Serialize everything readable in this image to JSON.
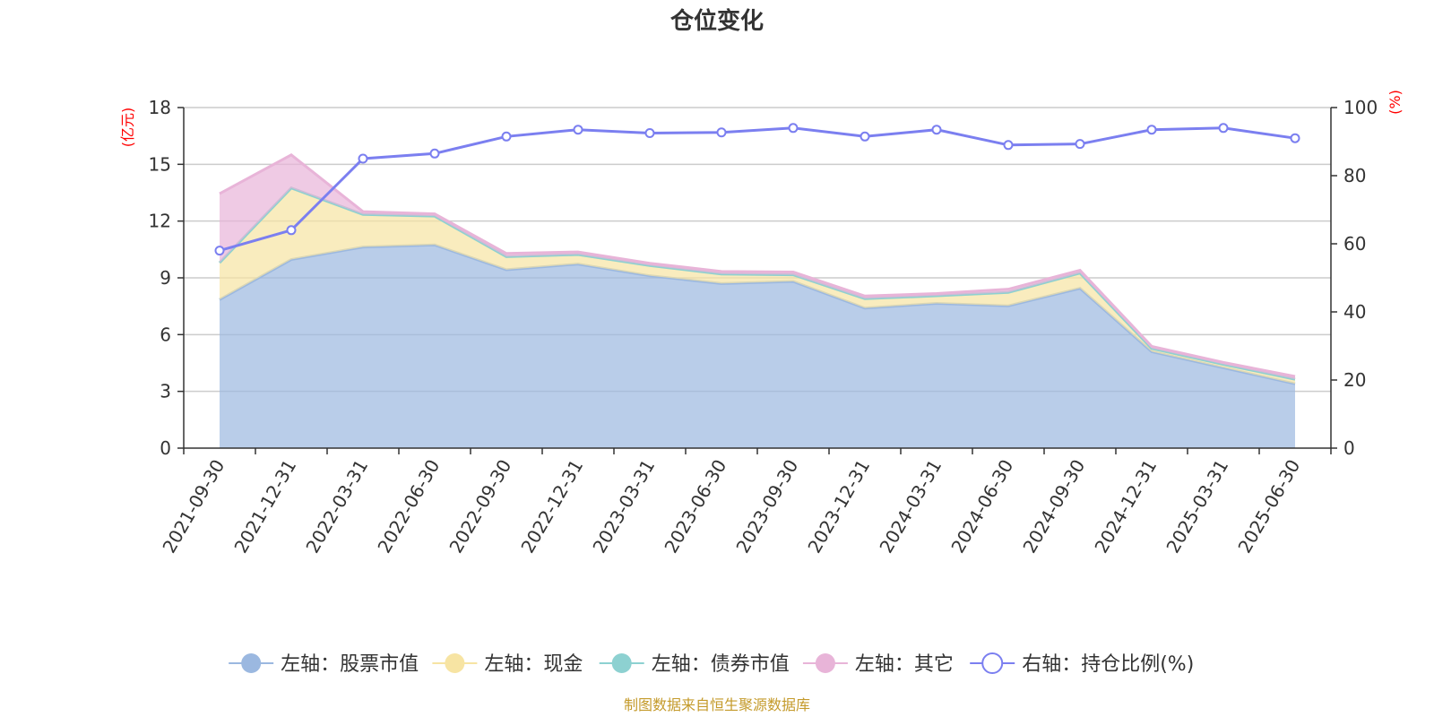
{
  "chart_data": {
    "type": "area",
    "title": "仓位变化",
    "categories": [
      "2021-09-30",
      "2021-12-31",
      "2022-03-31",
      "2022-06-30",
      "2022-09-30",
      "2022-12-31",
      "2023-03-31",
      "2023-06-30",
      "2023-09-30",
      "2023-12-31",
      "2024-03-31",
      "2024-06-30",
      "2024-09-30",
      "2024-12-31",
      "2025-03-31",
      "2025-06-30"
    ],
    "left_axis": {
      "unit": "(亿元)",
      "min": 0,
      "max": 18,
      "ticks": [
        0,
        3,
        6,
        9,
        12,
        15,
        18
      ]
    },
    "right_axis": {
      "unit": "(%)",
      "min": 0,
      "max": 100,
      "ticks": [
        0,
        20,
        40,
        60,
        80,
        100
      ]
    },
    "series": [
      {
        "name": "左轴：股票市值",
        "axis": "left",
        "stack": true,
        "color": "#9bb8e0",
        "values": [
          7.85,
          9.97,
          10.63,
          10.74,
          9.43,
          9.73,
          9.11,
          8.7,
          8.81,
          7.4,
          7.65,
          7.52,
          8.45,
          5.1,
          4.25,
          3.4
        ]
      },
      {
        "name": "左轴：现金",
        "axis": "left",
        "stack": true,
        "color": "#f7e4a3",
        "values": [
          1.95,
          3.78,
          1.72,
          1.52,
          0.69,
          0.5,
          0.54,
          0.5,
          0.35,
          0.5,
          0.4,
          0.71,
          0.8,
          0.17,
          0.18,
          0.24
        ]
      },
      {
        "name": "左轴：债券市值",
        "axis": "left",
        "stack": true,
        "color": "#8dd1d1",
        "values": [
          0,
          0,
          0,
          0,
          0,
          0,
          0,
          0,
          0,
          0,
          0,
          0,
          0,
          0,
          0,
          0
        ]
      },
      {
        "name": "左轴：其它",
        "axis": "left",
        "stack": true,
        "color": "#e8b4d8",
        "values": [
          3.65,
          1.75,
          0.15,
          0.12,
          0.17,
          0.14,
          0.12,
          0.14,
          0.15,
          0.14,
          0.12,
          0.17,
          0.15,
          0.11,
          0.1,
          0.15
        ]
      },
      {
        "name": "右轴：持仓比例(%)",
        "axis": "right",
        "stack": false,
        "color": "#7b7ff0",
        "values": [
          58.0,
          64.0,
          85.0,
          86.5,
          91.5,
          93.5,
          92.5,
          92.7,
          94.0,
          91.5,
          93.5,
          89.0,
          89.3,
          93.5,
          94.0,
          91.0
        ]
      }
    ]
  },
  "source": "制图数据来自恒生聚源数据库"
}
